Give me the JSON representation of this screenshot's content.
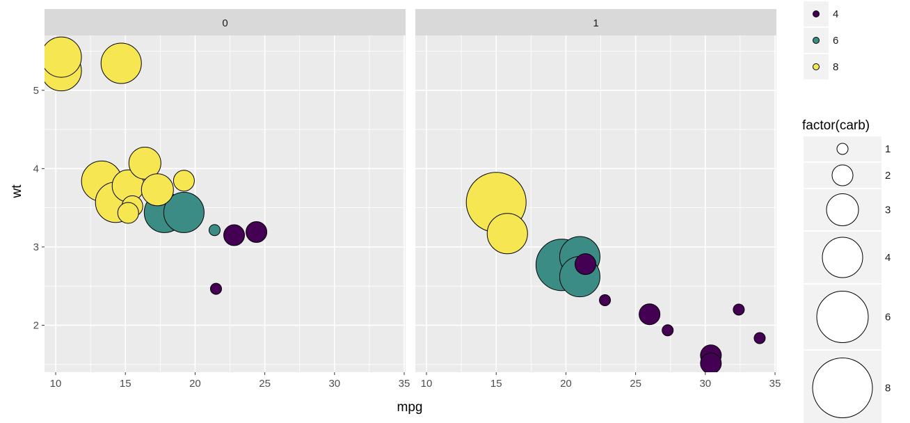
{
  "chart_data": {
    "type": "scatter",
    "xlabel": "mpg",
    "ylabel": "wt",
    "xlim": [
      9.2,
      35.1
    ],
    "ylim": [
      1.4,
      5.7
    ],
    "x_ticks": [
      10,
      15,
      20,
      25,
      30,
      35
    ],
    "y_ticks": [
      2,
      3,
      4,
      5
    ],
    "grid": true,
    "facets": [
      {
        "label": "0",
        "points": [
          {
            "x": 10.4,
            "y": 5.25,
            "cyl": 8,
            "carb": 4
          },
          {
            "x": 10.4,
            "y": 5.424,
            "cyl": 8,
            "carb": 4
          },
          {
            "x": 14.7,
            "y": 5.345,
            "cyl": 8,
            "carb": 4
          },
          {
            "x": 13.3,
            "y": 3.84,
            "cyl": 8,
            "carb": 4
          },
          {
            "x": 14.3,
            "y": 3.57,
            "cyl": 8,
            "carb": 4
          },
          {
            "x": 15.2,
            "y": 3.78,
            "cyl": 8,
            "carb": 3
          },
          {
            "x": 16.4,
            "y": 4.07,
            "cyl": 8,
            "carb": 3
          },
          {
            "x": 17.3,
            "y": 3.73,
            "cyl": 8,
            "carb": 3
          },
          {
            "x": 15.5,
            "y": 3.52,
            "cyl": 8,
            "carb": 2
          },
          {
            "x": 15.2,
            "y": 3.435,
            "cyl": 8,
            "carb": 2
          },
          {
            "x": 19.2,
            "y": 3.845,
            "cyl": 8,
            "carb": 2
          },
          {
            "x": 17.8,
            "y": 3.44,
            "cyl": 6,
            "carb": 4
          },
          {
            "x": 19.2,
            "y": 3.44,
            "cyl": 6,
            "carb": 4
          },
          {
            "x": 21.4,
            "y": 3.215,
            "cyl": 6,
            "carb": 1
          },
          {
            "x": 22.8,
            "y": 3.15,
            "cyl": 4,
            "carb": 2
          },
          {
            "x": 24.4,
            "y": 3.19,
            "cyl": 4,
            "carb": 2
          },
          {
            "x": 21.5,
            "y": 2.465,
            "cyl": 4,
            "carb": 1
          }
        ]
      },
      {
        "label": "1",
        "points": [
          {
            "x": 15.0,
            "y": 3.57,
            "cyl": 8,
            "carb": 8
          },
          {
            "x": 15.8,
            "y": 3.17,
            "cyl": 8,
            "carb": 4
          },
          {
            "x": 19.7,
            "y": 2.77,
            "cyl": 6,
            "carb": 6
          },
          {
            "x": 21.0,
            "y": 2.875,
            "cyl": 6,
            "carb": 4
          },
          {
            "x": 21.0,
            "y": 2.62,
            "cyl": 6,
            "carb": 4
          },
          {
            "x": 21.4,
            "y": 2.78,
            "cyl": 4,
            "carb": 2
          },
          {
            "x": 22.8,
            "y": 2.32,
            "cyl": 4,
            "carb": 1
          },
          {
            "x": 26.0,
            "y": 2.14,
            "cyl": 4,
            "carb": 2
          },
          {
            "x": 27.3,
            "y": 1.935,
            "cyl": 4,
            "carb": 1
          },
          {
            "x": 30.4,
            "y": 1.615,
            "cyl": 4,
            "carb": 2
          },
          {
            "x": 30.4,
            "y": 1.513,
            "cyl": 4,
            "carb": 2
          },
          {
            "x": 32.4,
            "y": 2.2,
            "cyl": 4,
            "carb": 1
          },
          {
            "x": 33.9,
            "y": 1.835,
            "cyl": 4,
            "carb": 1
          }
        ]
      }
    ],
    "color_legend": {
      "title": "",
      "entries": [
        {
          "label": "4",
          "color": "#440154"
        },
        {
          "label": "6",
          "color": "#3b8c84"
        },
        {
          "label": "8",
          "color": "#f6e652"
        }
      ]
    },
    "size_legend": {
      "title": "factor(carb)",
      "entries": [
        "1",
        "2",
        "3",
        "4",
        "6",
        "8"
      ]
    }
  }
}
